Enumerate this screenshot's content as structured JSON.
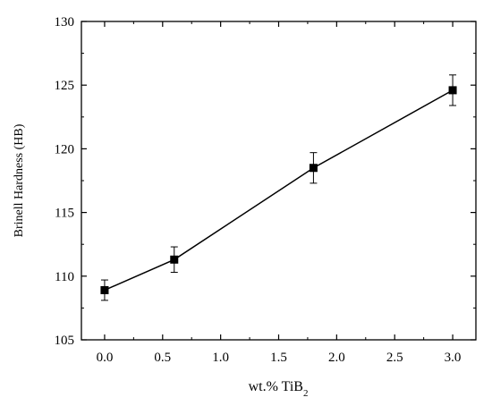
{
  "chart_data": {
    "type": "line",
    "title": "",
    "xlabel": {
      "prefix": "wt.% TiB",
      "subscript": "2"
    },
    "ylabel": "Brinell Hardness (HB)",
    "xlim": [
      -0.2,
      3.2
    ],
    "ylim": [
      105,
      130
    ],
    "x_ticks": [
      "0.0",
      "0.5",
      "1.0",
      "1.5",
      "2.0",
      "2.5",
      "3.0"
    ],
    "y_ticks": [
      "105",
      "110",
      "115",
      "120",
      "125",
      "130"
    ],
    "grid": false,
    "legend": "none",
    "series": [
      {
        "x": [
          0.0,
          0.6,
          1.8,
          3.0
        ],
        "y": [
          108.9,
          111.3,
          118.5,
          124.6
        ],
        "error": [
          0.8,
          1.0,
          1.2,
          1.2
        ],
        "marker": "square",
        "color": "#000000"
      }
    ]
  }
}
